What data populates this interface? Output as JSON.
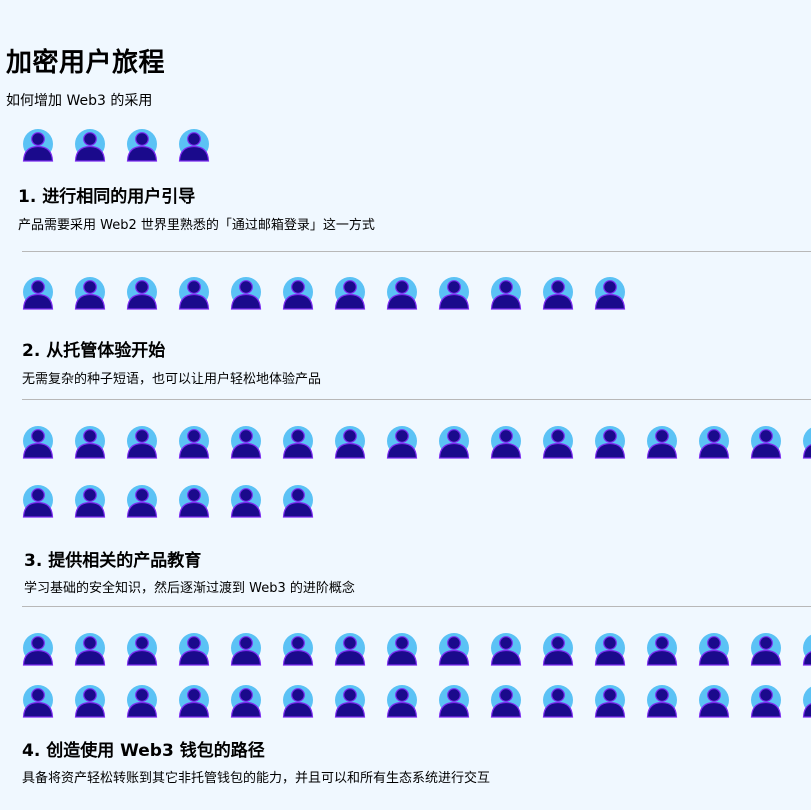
{
  "header": {
    "title": "加密用户旅程",
    "subtitle": "如何增加 Web3 的采用"
  },
  "colors": {
    "background": "#f0f8ff",
    "icon_halo": "#5bc2f5",
    "icon_body": "#1a0a8c",
    "icon_outline": "#7c2cf0",
    "divider": "#b8b8b8"
  },
  "icon_name": "user-icon",
  "steps": [
    {
      "title": "1.  进行相同的用户引导",
      "desc": "产品需要采用 Web2 世界里熟悉的「通过邮箱登录」这一方式",
      "icon_rows": [
        4
      ]
    },
    {
      "title": "2. 从托管体验开始",
      "desc": "无需复杂的种子短语，也可以让用户轻松地体验产品",
      "icon_rows": [
        12
      ]
    },
    {
      "title": "3. 提供相关的产品教育",
      "desc": "学习基础的安全知识，然后逐渐过渡到 Web3 的进阶概念",
      "icon_rows": [
        16,
        6
      ]
    },
    {
      "title": "4. 创造使用 Web3 钱包的路径",
      "desc": "具备将资产轻松转账到其它非托管钱包的能力，并且可以和所有生态系统进行交互",
      "icon_rows": [
        16,
        16
      ]
    }
  ]
}
